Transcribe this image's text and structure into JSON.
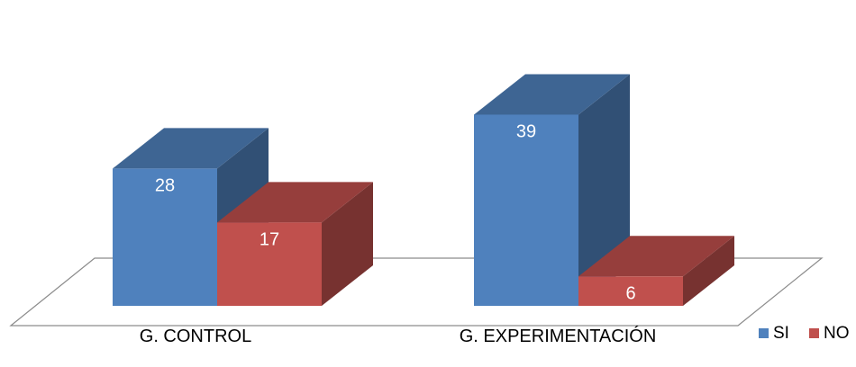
{
  "caption_text": "",
  "chart_data": {
    "type": "bar",
    "style": "3d-clustered-column",
    "categories": [
      "G. CONTROL",
      "G. EXPERIMENTACIÓN"
    ],
    "series": [
      {
        "name": "SI",
        "values": [
          28,
          39
        ],
        "color": "#4F81BD"
      },
      {
        "name": "NO",
        "values": [
          17,
          6
        ],
        "color": "#C0504D"
      }
    ],
    "title": "",
    "xlabel": "",
    "ylabel": "",
    "ylim": [
      0,
      40
    ],
    "grid": false,
    "legend": "right",
    "data_labels": true
  }
}
